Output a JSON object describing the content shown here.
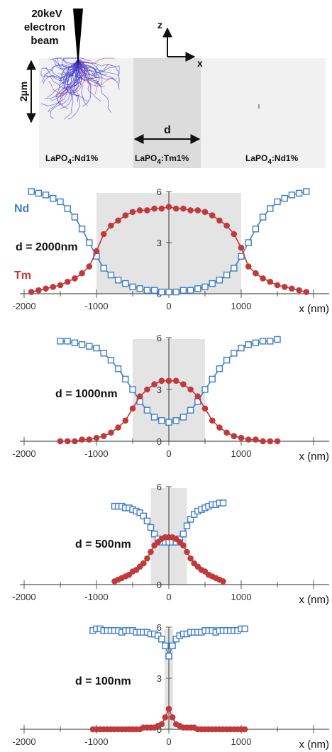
{
  "schematic": {
    "beam_label_line1": "20keV",
    "beam_label_line2": "electron",
    "beam_label_line3": "beam",
    "depth_label": "2µm",
    "z_axis_label": "z",
    "x_axis_label": "x",
    "width_label": "d",
    "left_material": "LaPO4:Nd1%",
    "middle_material": "LaPO4:Tm1%",
    "right_material": "LaPO4:Nd1%"
  },
  "colors": {
    "nd": "#3d7cc9",
    "tm": "#c0393b",
    "band": "#e4e4e4",
    "axis": "#555555"
  },
  "chart_data": [
    {
      "type": "line",
      "panel_label": "d = 2000nm",
      "band": [
        -1000,
        1000
      ],
      "xlim": [
        -2000,
        2000
      ],
      "ylim": [
        0,
        6
      ],
      "xticks": [
        "-2000",
        "-1000",
        "0",
        "1000"
      ],
      "yticks": [
        "6",
        "3",
        "0"
      ],
      "xlabel": "x (nm)",
      "series": [
        {
          "name": "Nd",
          "marker": "square",
          "x": [
            -1900,
            -1800,
            -1700,
            -1600,
            -1500,
            -1400,
            -1300,
            -1200,
            -1100,
            -1000,
            -900,
            -800,
            -700,
            -600,
            -500,
            -400,
            -300,
            -200,
            -100,
            0,
            100,
            200,
            300,
            400,
            500,
            600,
            700,
            800,
            900,
            1000,
            1100,
            1200,
            1300,
            1400,
            1500,
            1600,
            1700,
            1800,
            1900
          ],
          "y": [
            6.0,
            5.9,
            5.8,
            5.6,
            5.4,
            5.0,
            4.5,
            3.8,
            3.0,
            2.2,
            1.5,
            1.1,
            0.8,
            0.6,
            0.4,
            0.3,
            0.2,
            0.2,
            0.1,
            0.1,
            0.1,
            0.2,
            0.2,
            0.3,
            0.4,
            0.6,
            0.8,
            1.1,
            1.5,
            2.2,
            3.0,
            3.8,
            4.5,
            5.0,
            5.4,
            5.6,
            5.8,
            5.9,
            6.0
          ]
        },
        {
          "name": "Tm",
          "marker": "circle",
          "x": [
            -1900,
            -1800,
            -1700,
            -1600,
            -1500,
            -1400,
            -1300,
            -1200,
            -1100,
            -1000,
            -900,
            -800,
            -700,
            -600,
            -500,
            -400,
            -300,
            -200,
            -100,
            0,
            100,
            200,
            300,
            400,
            500,
            600,
            700,
            800,
            900,
            1000,
            1100,
            1200,
            1300,
            1400,
            1500,
            1600,
            1700,
            1800,
            1900
          ],
          "y": [
            0.1,
            0.2,
            0.3,
            0.4,
            0.5,
            0.7,
            0.9,
            1.2,
            1.6,
            2.5,
            3.5,
            4.0,
            4.3,
            4.6,
            4.8,
            4.9,
            4.9,
            5.0,
            5.0,
            5.1,
            5.0,
            5.0,
            4.9,
            4.9,
            4.8,
            4.6,
            4.3,
            4.0,
            3.5,
            2.7,
            1.6,
            1.2,
            0.9,
            0.7,
            0.5,
            0.4,
            0.3,
            0.2,
            0.1
          ]
        }
      ]
    },
    {
      "type": "line",
      "panel_label": "d = 1000nm",
      "band": [
        -500,
        500
      ],
      "xlim": [
        -2000,
        2000
      ],
      "ylim": [
        0,
        6
      ],
      "xticks": [
        "-2000",
        "-1000",
        "0",
        "1000"
      ],
      "yticks": [
        "6",
        "3",
        "0"
      ],
      "xlabel": "x (nm)",
      "series": [
        {
          "name": "",
          "marker": "square",
          "x": [
            -1500,
            -1400,
            -1300,
            -1200,
            -1100,
            -1000,
            -900,
            -800,
            -700,
            -600,
            -500,
            -400,
            -300,
            -200,
            -100,
            0,
            100,
            200,
            300,
            400,
            500,
            600,
            700,
            800,
            900,
            1000,
            1100,
            1200,
            1300,
            1400,
            1500
          ],
          "y": [
            5.8,
            5.8,
            5.7,
            5.6,
            5.5,
            5.4,
            5.1,
            4.7,
            4.2,
            3.6,
            3.0,
            2.3,
            1.8,
            1.4,
            1.2,
            1.1,
            1.2,
            1.4,
            1.8,
            2.3,
            3.0,
            3.6,
            4.2,
            4.7,
            5.1,
            5.4,
            5.6,
            5.7,
            5.8,
            5.8,
            5.9
          ]
        },
        {
          "name": "",
          "marker": "circle",
          "x": [
            -1500,
            -1400,
            -1300,
            -1200,
            -1100,
            -1000,
            -900,
            -800,
            -700,
            -600,
            -500,
            -400,
            -300,
            -200,
            -100,
            0,
            100,
            200,
            300,
            400,
            500,
            600,
            700,
            800,
            900,
            1000,
            1100,
            1200,
            1300,
            1400,
            1500
          ],
          "y": [
            0.0,
            0.0,
            0.0,
            0.1,
            0.1,
            0.2,
            0.3,
            0.5,
            0.8,
            1.2,
            1.9,
            2.6,
            3.0,
            3.3,
            3.5,
            3.5,
            3.5,
            3.3,
            3.0,
            2.6,
            1.9,
            1.2,
            0.8,
            0.5,
            0.3,
            0.2,
            0.1,
            0.1,
            0.0,
            0.0,
            0.0
          ]
        }
      ]
    },
    {
      "type": "line",
      "panel_label": "d = 500nm",
      "band": [
        -250,
        250
      ],
      "xlim": [
        -2000,
        2000
      ],
      "ylim": [
        0,
        6
      ],
      "xticks": [
        "-2000",
        "-1000",
        "0",
        "1000"
      ],
      "yticks": [
        "6",
        "0"
      ],
      "xlabel": "x (nm)",
      "series": [
        {
          "name": "",
          "marker": "square",
          "x": [
            -750,
            -700,
            -650,
            -600,
            -550,
            -500,
            -450,
            -400,
            -350,
            -300,
            -250,
            -200,
            -150,
            -100,
            -50,
            0,
            50,
            100,
            150,
            200,
            250,
            300,
            350,
            400,
            450,
            500,
            550,
            600,
            650,
            700,
            750
          ],
          "y": [
            4.8,
            4.8,
            4.8,
            4.7,
            4.7,
            4.6,
            4.5,
            4.4,
            4.2,
            3.9,
            3.5,
            3.1,
            2.8,
            2.6,
            2.6,
            2.6,
            2.6,
            2.6,
            2.8,
            3.1,
            3.6,
            4.0,
            4.3,
            4.5,
            4.6,
            4.7,
            4.8,
            4.9,
            4.9,
            5.0,
            5.0
          ]
        },
        {
          "name": "",
          "marker": "circle",
          "x": [
            -750,
            -700,
            -650,
            -600,
            -550,
            -500,
            -450,
            -400,
            -350,
            -300,
            -250,
            -200,
            -150,
            -100,
            -50,
            0,
            50,
            100,
            150,
            200,
            250,
            300,
            350,
            400,
            450,
            500,
            550,
            600,
            650,
            700,
            750
          ],
          "y": [
            0.2,
            0.3,
            0.4,
            0.5,
            0.6,
            0.8,
            0.9,
            1.1,
            1.3,
            1.6,
            2.0,
            2.4,
            2.6,
            2.8,
            2.9,
            2.9,
            2.9,
            2.8,
            2.6,
            2.4,
            2.0,
            1.6,
            1.3,
            1.1,
            0.9,
            0.8,
            0.6,
            0.5,
            0.4,
            0.3,
            0.2
          ]
        }
      ]
    },
    {
      "type": "line",
      "panel_label": "d = 100nm",
      "band": [
        -60,
        60
      ],
      "xlim": [
        -2000,
        2000
      ],
      "ylim": [
        0,
        6
      ],
      "xticks": [
        "-2000",
        "-1000",
        "0",
        "1000"
      ],
      "yticks": [
        "6",
        "3",
        "0"
      ],
      "xlabel": "x (nm)",
      "series": [
        {
          "name": "",
          "marker": "square",
          "x": [
            -1050,
            -1000,
            -950,
            -900,
            -850,
            -800,
            -750,
            -700,
            -650,
            -600,
            -550,
            -500,
            -450,
            -400,
            -350,
            -300,
            -250,
            -200,
            -150,
            -100,
            -50,
            0,
            50,
            100,
            150,
            200,
            250,
            300,
            350,
            400,
            450,
            500,
            550,
            600,
            650,
            700,
            750,
            800,
            850,
            900,
            950,
            1000,
            1050
          ],
          "y": [
            5.8,
            5.9,
            5.9,
            5.8,
            5.8,
            5.8,
            5.8,
            5.8,
            5.7,
            5.8,
            5.8,
            5.8,
            5.7,
            5.7,
            5.7,
            5.7,
            5.6,
            5.6,
            5.5,
            5.3,
            4.9,
            4.3,
            4.9,
            5.3,
            5.5,
            5.6,
            5.6,
            5.7,
            5.7,
            5.7,
            5.7,
            5.8,
            5.8,
            5.8,
            5.7,
            5.8,
            5.8,
            5.8,
            5.8,
            5.8,
            5.8,
            5.9,
            5.9
          ]
        },
        {
          "name": "",
          "marker": "circle",
          "x": [
            -1050,
            -1000,
            -950,
            -900,
            -850,
            -800,
            -750,
            -700,
            -650,
            -600,
            -550,
            -500,
            -450,
            -400,
            -350,
            -300,
            -250,
            -200,
            -150,
            -100,
            -50,
            0,
            50,
            100,
            150,
            200,
            250,
            300,
            350,
            400,
            450,
            500,
            550,
            600,
            650,
            700,
            750,
            800,
            850,
            900,
            950,
            1000,
            1050
          ],
          "y": [
            0.0,
            0.0,
            0.0,
            0.0,
            0.0,
            0.0,
            0.0,
            0.0,
            0.0,
            0.0,
            0.0,
            0.0,
            0.0,
            0.0,
            0.1,
            0.1,
            0.1,
            0.1,
            0.2,
            0.3,
            0.7,
            1.2,
            0.7,
            0.3,
            0.2,
            0.1,
            0.1,
            0.1,
            0.1,
            0.0,
            0.0,
            0.0,
            0.0,
            0.0,
            0.0,
            0.0,
            0.0,
            0.0,
            0.0,
            0.0,
            0.0,
            0.0,
            0.0
          ]
        }
      ]
    }
  ],
  "legend": {
    "nd": "Nd",
    "tm": "Tm"
  }
}
